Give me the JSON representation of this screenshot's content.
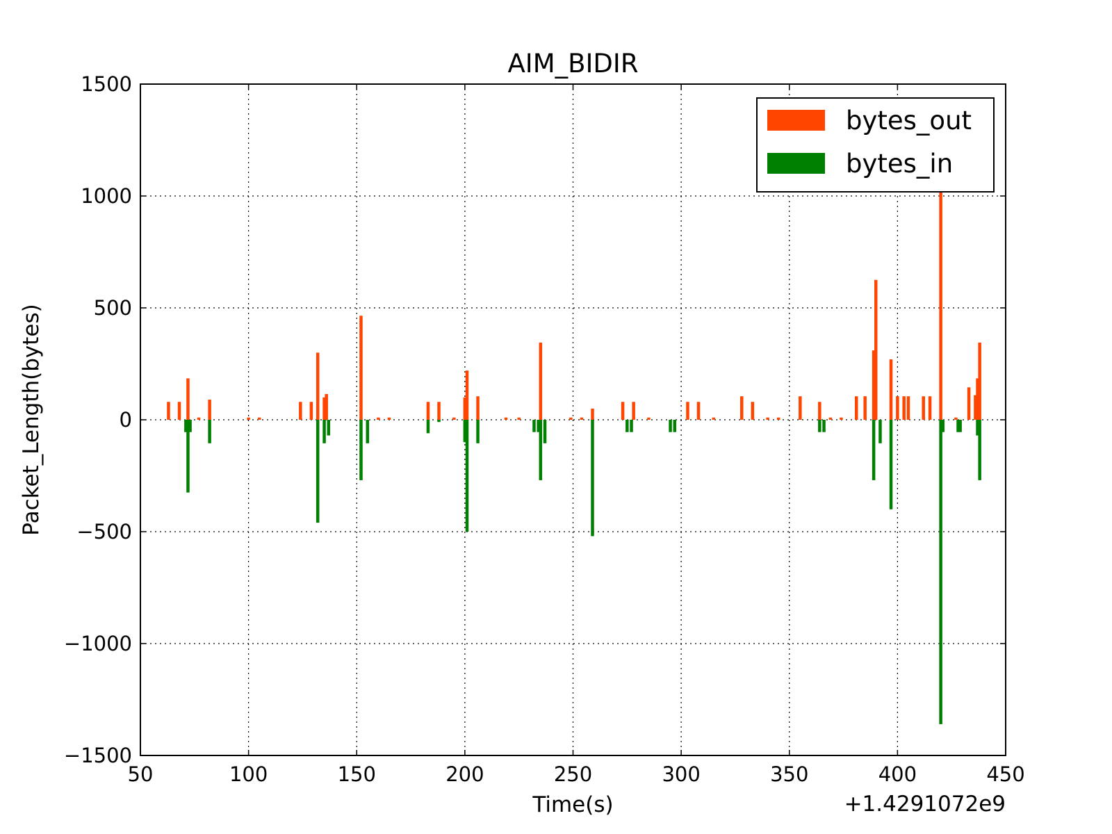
{
  "chart_data": {
    "type": "bar",
    "title": "AIM_BIDIR",
    "xlabel": "Time(s)",
    "ylabel": "Packet_Length(bytes)",
    "x_offset_label": "+1.4291072e9",
    "xlim": [
      50,
      450
    ],
    "ylim": [
      -1500,
      1500
    ],
    "xticks": [
      50,
      100,
      150,
      200,
      250,
      300,
      350,
      400,
      450
    ],
    "yticks": [
      1500,
      1000,
      500,
      0,
      -500,
      -1000,
      -1500
    ],
    "ytick_labels": [
      "1500",
      "1000",
      "500",
      "0",
      "−500",
      "−1000",
      "−1500"
    ],
    "grid": true,
    "legend_position": "top-right",
    "series": [
      {
        "name": "bytes_out",
        "color": "#ff4500",
        "points": [
          [
            63,
            80
          ],
          [
            68,
            80
          ],
          [
            72,
            185
          ],
          [
            77,
            10
          ],
          [
            82,
            90
          ],
          [
            100,
            10
          ],
          [
            105,
            10
          ],
          [
            124,
            80
          ],
          [
            129,
            80
          ],
          [
            132,
            300
          ],
          [
            135,
            100
          ],
          [
            136,
            115
          ],
          [
            152,
            465
          ],
          [
            160,
            10
          ],
          [
            165,
            10
          ],
          [
            183,
            80
          ],
          [
            188,
            80
          ],
          [
            195,
            10
          ],
          [
            200,
            100
          ],
          [
            201,
            220
          ],
          [
            206,
            105
          ],
          [
            219,
            10
          ],
          [
            225,
            10
          ],
          [
            235,
            345
          ],
          [
            249,
            10
          ],
          [
            254,
            10
          ],
          [
            259,
            50
          ],
          [
            273,
            80
          ],
          [
            278,
            80
          ],
          [
            285,
            10
          ],
          [
            303,
            80
          ],
          [
            308,
            80
          ],
          [
            315,
            10
          ],
          [
            328,
            105
          ],
          [
            333,
            80
          ],
          [
            340,
            10
          ],
          [
            345,
            10
          ],
          [
            355,
            105
          ],
          [
            364,
            80
          ],
          [
            369,
            10
          ],
          [
            374,
            10
          ],
          [
            381,
            105
          ],
          [
            385,
            105
          ],
          [
            389,
            310
          ],
          [
            390,
            625
          ],
          [
            397,
            270
          ],
          [
            400,
            105
          ],
          [
            403,
            105
          ],
          [
            405,
            105
          ],
          [
            412,
            105
          ],
          [
            415,
            105
          ],
          [
            420,
            1025
          ],
          [
            427,
            10
          ],
          [
            433,
            145
          ],
          [
            436,
            110
          ],
          [
            437,
            185
          ],
          [
            438,
            345
          ]
        ]
      },
      {
        "name": "bytes_in",
        "color": "#008000",
        "points": [
          [
            71,
            -55
          ],
          [
            72,
            -325
          ],
          [
            73,
            -55
          ],
          [
            82,
            -105
          ],
          [
            132,
            -460
          ],
          [
            135,
            -105
          ],
          [
            137,
            -70
          ],
          [
            152,
            -270
          ],
          [
            155,
            -105
          ],
          [
            183,
            -60
          ],
          [
            188,
            -10
          ],
          [
            200,
            -100
          ],
          [
            201,
            -500
          ],
          [
            206,
            -105
          ],
          [
            232,
            -55
          ],
          [
            234,
            -55
          ],
          [
            235,
            -270
          ],
          [
            237,
            -105
          ],
          [
            259,
            -520
          ],
          [
            275,
            -55
          ],
          [
            277,
            -55
          ],
          [
            295,
            -55
          ],
          [
            297,
            -55
          ],
          [
            364,
            -55
          ],
          [
            366,
            -55
          ],
          [
            389,
            -270
          ],
          [
            392,
            -105
          ],
          [
            397,
            -400
          ],
          [
            420,
            -1360
          ],
          [
            421,
            -55
          ],
          [
            428,
            -55
          ],
          [
            429,
            -55
          ],
          [
            437,
            -70
          ],
          [
            438,
            -270
          ]
        ]
      }
    ]
  }
}
